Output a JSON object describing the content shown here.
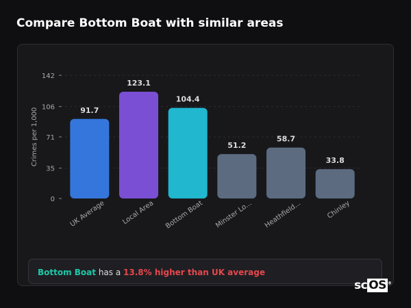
{
  "title": "Compare Bottom Boat with similar areas",
  "chart_data": {
    "type": "bar",
    "title": "",
    "xlabel": "",
    "ylabel": "Crimes per 1,000",
    "ylim": [
      0,
      142
    ],
    "yticks": [
      0,
      35,
      71,
      106,
      142
    ],
    "grid": true,
    "categories": [
      "UK Average",
      "Local Area",
      "Bottom Boat",
      "Minster Lo...",
      "Heathfield...",
      "Chinley"
    ],
    "values": [
      91.7,
      123.1,
      104.4,
      51.2,
      58.7,
      33.8
    ],
    "labels": [
      "91.7",
      "123.1",
      "104.4",
      "51.2",
      "58.7",
      "33.8"
    ],
    "colors": [
      "#3476dc",
      "#7b4fd3",
      "#20b7cf",
      "#5c6b80",
      "#5c6b80",
      "#5c6b80"
    ]
  },
  "summary": {
    "area": "Bottom Boat",
    "middle": " has a ",
    "comparison": "13.8% higher than UK average"
  },
  "logo": {
    "text_a": "sc",
    "text_b": "OS",
    "mark": "®"
  }
}
